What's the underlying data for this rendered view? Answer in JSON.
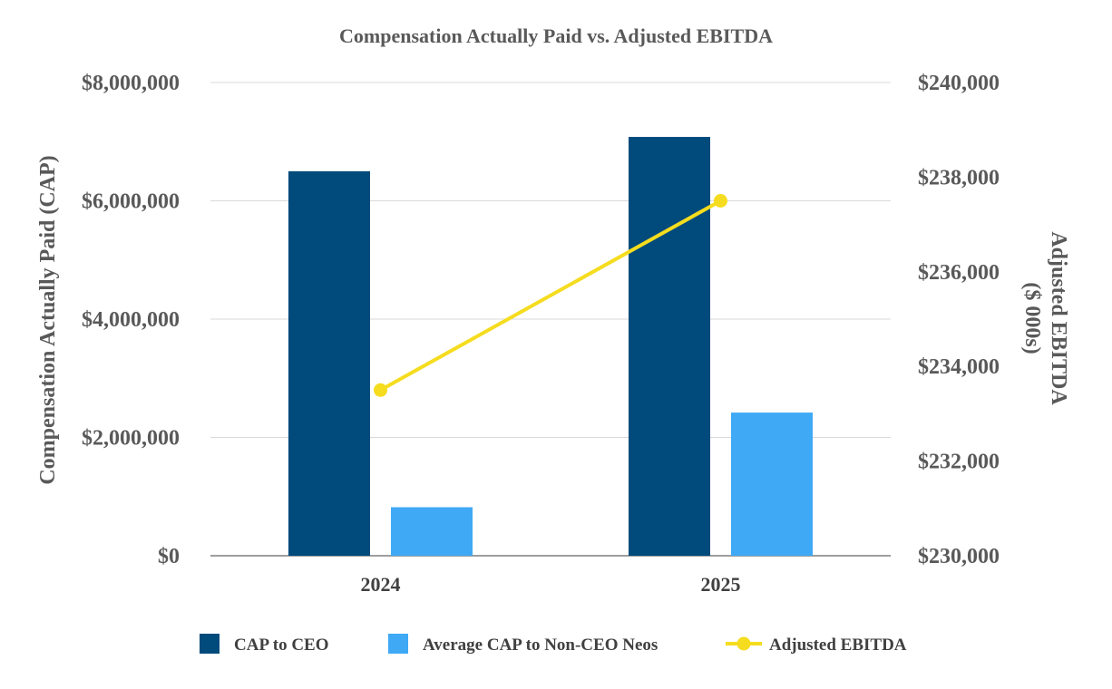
{
  "chart_data": {
    "type": "bar",
    "title": "Compensation Actually Paid vs. Adjusted EBITDA",
    "categories": [
      "2024",
      "2025"
    ],
    "y_left": {
      "label": "Compensation Actually Paid (CAP)",
      "range": [
        0,
        8000000
      ],
      "ticks": [
        {
          "value": 0,
          "label": "$0"
        },
        {
          "value": 2000000,
          "label": "$2,000,000"
        },
        {
          "value": 4000000,
          "label": "$4,000,000"
        },
        {
          "value": 6000000,
          "label": "$6,000,000"
        },
        {
          "value": 8000000,
          "label": "$8,000,000"
        }
      ]
    },
    "y_right": {
      "label_line1": "Adjusted EBITDA",
      "label_line2": "($ 000s)",
      "range": [
        230000,
        240000
      ],
      "ticks": [
        {
          "value": 230000,
          "label": "$230,000"
        },
        {
          "value": 232000,
          "label": "$232,000"
        },
        {
          "value": 234000,
          "label": "$234,000"
        },
        {
          "value": 236000,
          "label": "$236,000"
        },
        {
          "value": 238000,
          "label": "$238,000"
        },
        {
          "value": 240000,
          "label": "$240,000"
        }
      ]
    },
    "series": [
      {
        "name": "CAP to CEO",
        "type": "bar",
        "axis": "left",
        "color": "#004a7c",
        "values": [
          6500000,
          7080000
        ]
      },
      {
        "name": "Average CAP to Non-CEO Neos",
        "type": "bar",
        "axis": "left",
        "color": "#3fa9f5",
        "values": [
          820000,
          2420000
        ]
      },
      {
        "name": "Adjusted EBITDA",
        "type": "line",
        "axis": "right",
        "color": "#f5dc1e",
        "values": [
          233500,
          237500
        ]
      }
    ],
    "grid": true,
    "legend_position": "bottom"
  }
}
